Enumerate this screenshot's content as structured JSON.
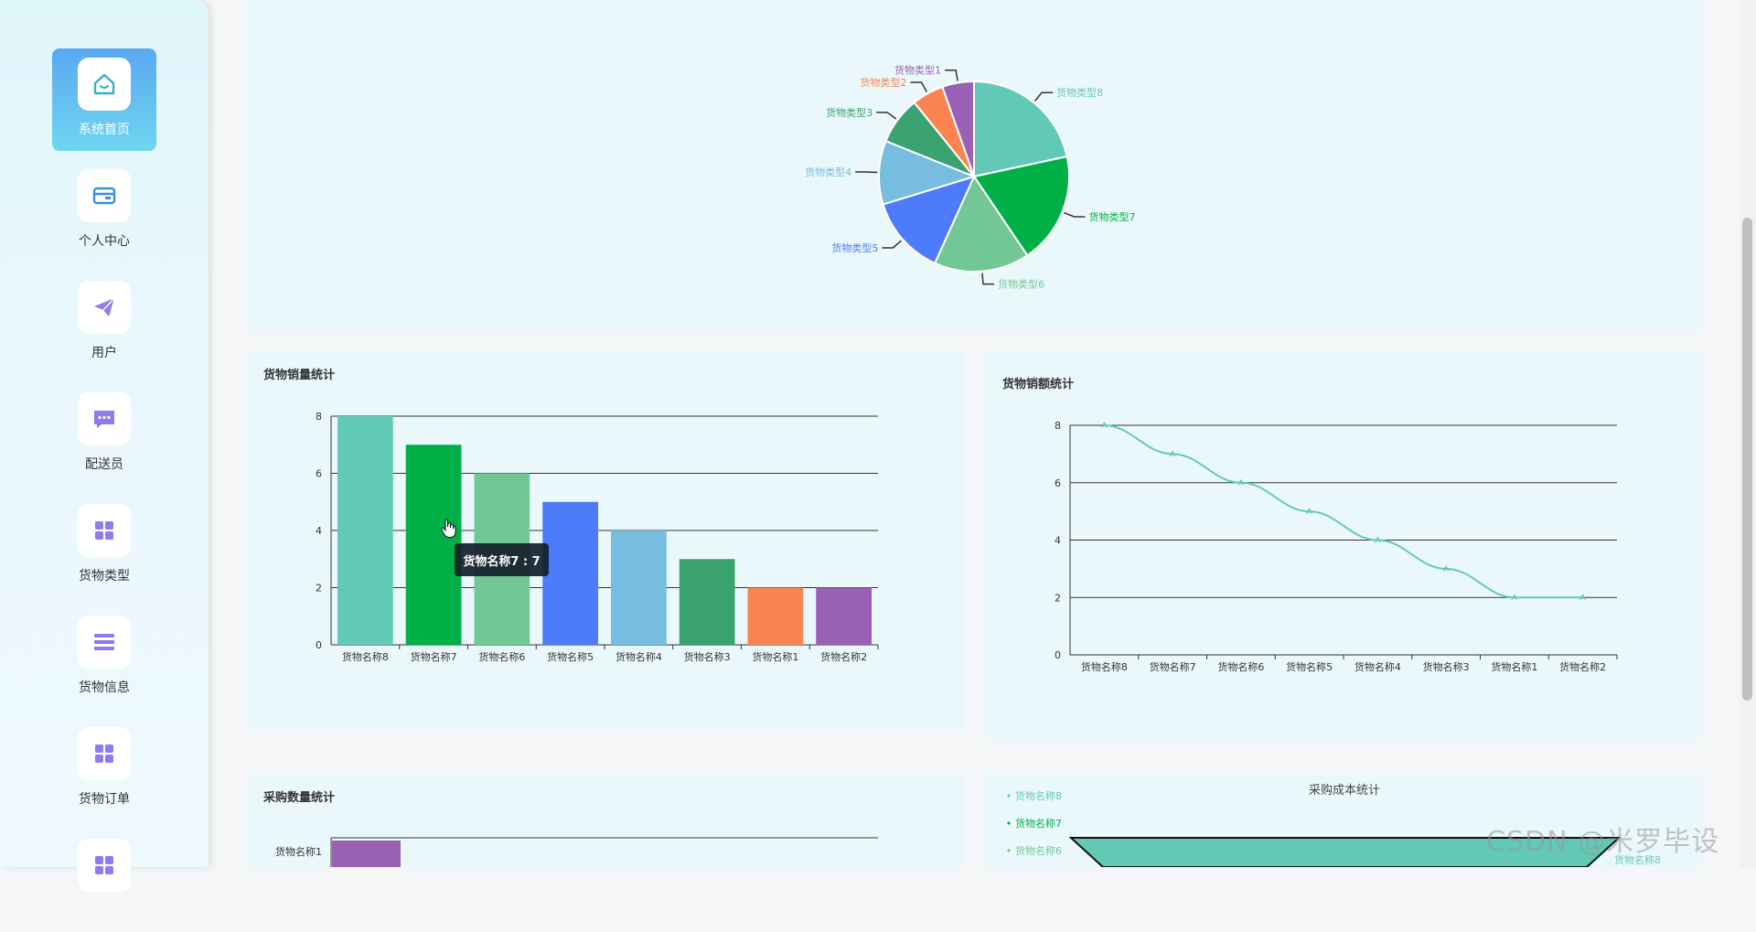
{
  "sidebar": {
    "items": [
      {
        "label": "系统首页",
        "icon": "home-icon",
        "active": true
      },
      {
        "label": "个人中心",
        "icon": "card-icon"
      },
      {
        "label": "用户",
        "icon": "paper-plane-icon"
      },
      {
        "label": "配送员",
        "icon": "chat-icon"
      },
      {
        "label": "货物类型",
        "icon": "grid-icon"
      },
      {
        "label": "货物信息",
        "icon": "list-icon"
      },
      {
        "label": "货物订单",
        "icon": "grid-icon"
      },
      {
        "label": "",
        "icon": "grid-icon"
      }
    ],
    "active_color": "#5aa8f2",
    "icon_color_primary": "#3ab0c8",
    "icon_color_secondary": "#8b7cf0"
  },
  "charts": {
    "pie": {
      "title": "",
      "labels": [
        "货物类型1",
        "货物类型2",
        "货物类型3",
        "货物类型4",
        "货物类型5",
        "货物类型6",
        "货物类型7",
        "货物类型8"
      ]
    },
    "sales_count": {
      "title": "货物销量统计"
    },
    "sales_amount": {
      "title": "货物销额统计"
    },
    "purchase_count": {
      "title": "采购数量统计"
    },
    "purchase_cost": {
      "title": "采购成本统计",
      "legend": [
        "货物名称8",
        "货物名称7",
        "货物名称6"
      ],
      "right_label": "货物名称8"
    }
  },
  "chart_data": [
    {
      "type": "pie",
      "labels": [
        "货物类型8",
        "货物类型7",
        "货物类型6",
        "货物类型5",
        "货物类型4",
        "货物类型3",
        "货物类型2",
        "货物类型1"
      ],
      "values": [
        8,
        7,
        6,
        5,
        4,
        3,
        2,
        2
      ],
      "colors": [
        "#63c9b7",
        "#00b046",
        "#72c894",
        "#4e7bfc",
        "#76bde0",
        "#3ba272",
        "#fc8452",
        "#9a60b4"
      ]
    },
    {
      "type": "bar",
      "title": "货物销量统计",
      "categories": [
        "货物名称8",
        "货物名称7",
        "货物名称6",
        "货物名称5",
        "货物名称4",
        "货物名称3",
        "货物名称1",
        "货物名称2"
      ],
      "values": [
        8,
        7,
        6,
        5,
        4,
        3,
        2,
        2
      ],
      "colors": [
        "#63c9b7",
        "#00b046",
        "#72c894",
        "#4e7bfc",
        "#76bde0",
        "#3ba272",
        "#fc8452",
        "#9a60b4"
      ],
      "ylim": [
        0,
        8
      ],
      "yticks": [
        0,
        2,
        4,
        6,
        8
      ],
      "grid": true
    },
    {
      "type": "line",
      "title": "货物销额统计",
      "categories": [
        "货物名称8",
        "货物名称7",
        "货物名称6",
        "货物名称5",
        "货物名称4",
        "货物名称3",
        "货物名称1",
        "货物名称2"
      ],
      "values": [
        8,
        7,
        6,
        5,
        4,
        3,
        2,
        2
      ],
      "color": "#63c9b7",
      "ylim": [
        0,
        8
      ],
      "yticks": [
        0,
        2,
        4,
        6,
        8
      ],
      "grid": true
    },
    {
      "type": "bar",
      "orientation": "horizontal",
      "title": "采购数量统计",
      "categories": [
        "货物名称1"
      ],
      "color": "#9a60b4"
    },
    {
      "type": "area",
      "title": "采购成本统计",
      "legend": [
        "货物名称8",
        "货物名称7",
        "货物名称6"
      ],
      "color": "#63c9b7"
    }
  ],
  "tooltip": {
    "text": "货物名称7 : 7"
  },
  "watermark": "CSDN @米罗毕设"
}
